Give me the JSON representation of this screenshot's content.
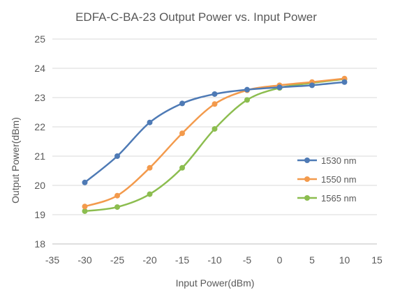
{
  "chart_data": {
    "type": "line",
    "title": "EDFA-C-BA-23  Output Power vs. Input Power",
    "xlabel": "Input Power(dBm)",
    "ylabel": "Output Power(dBm)",
    "xlim": [
      -35,
      15
    ],
    "ylim": [
      18,
      25
    ],
    "x_ticks": [
      -35,
      -30,
      -25,
      -20,
      -15,
      -10,
      -5,
      0,
      5,
      10,
      15
    ],
    "y_ticks": [
      18,
      19,
      20,
      21,
      22,
      23,
      24,
      25
    ],
    "grid": "horizontal",
    "legend": "right",
    "x": [
      -30,
      -25,
      -20,
      -15,
      -10,
      -5,
      0,
      5,
      10
    ],
    "series": [
      {
        "name": "1530 nm",
        "color": "#4e7ab5",
        "values": [
          20.1,
          21.0,
          22.15,
          22.8,
          23.12,
          23.27,
          23.35,
          23.42,
          23.53
        ]
      },
      {
        "name": "1550 nm",
        "color": "#f39a4c",
        "values": [
          19.28,
          19.65,
          20.6,
          21.78,
          22.78,
          23.25,
          23.42,
          23.53,
          23.65
        ]
      },
      {
        "name": "1565 nm",
        "color": "#8cbd4f",
        "values": [
          19.12,
          19.26,
          19.7,
          20.6,
          21.93,
          22.92,
          23.33,
          23.5,
          23.63
        ]
      }
    ]
  }
}
